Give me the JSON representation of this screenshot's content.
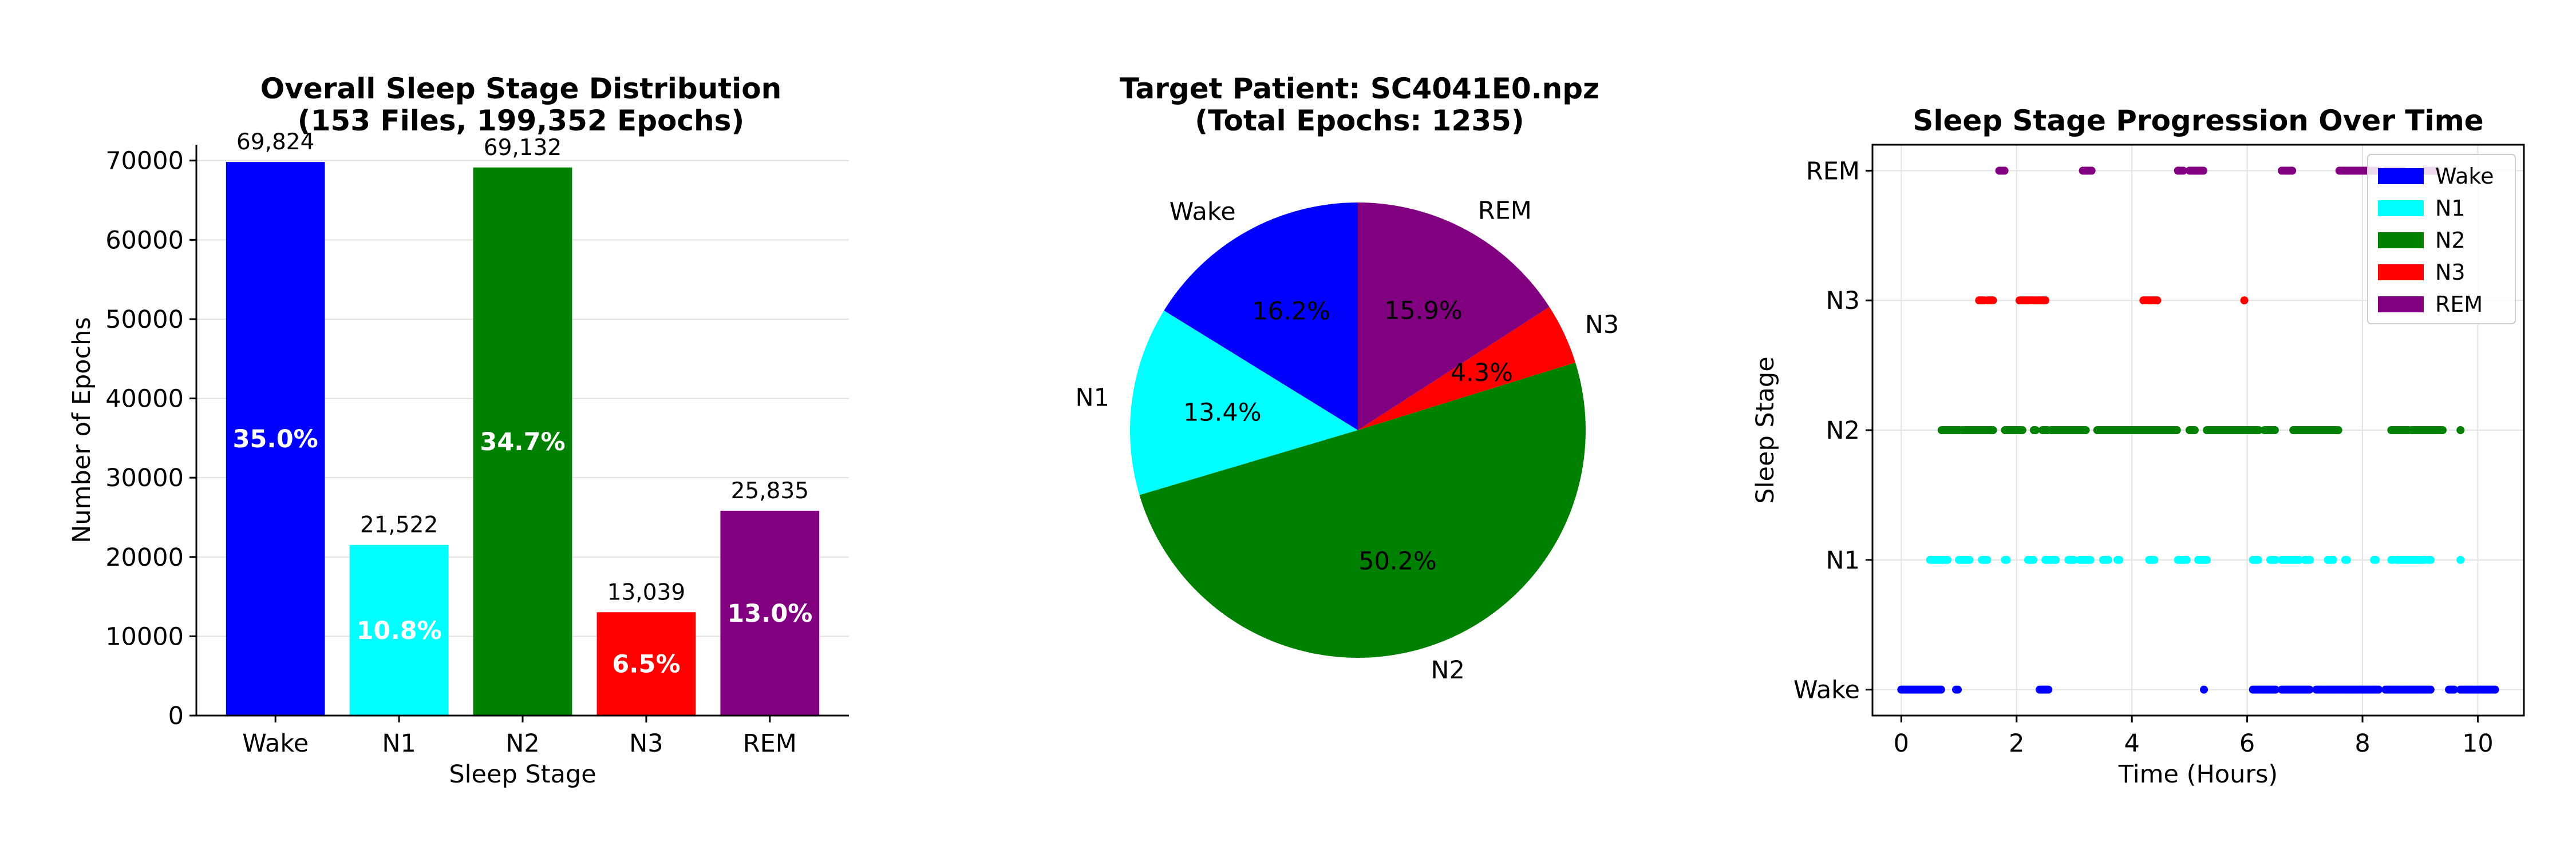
{
  "colors": {
    "Wake": "#0000ff",
    "N1": "#00ffff",
    "N2": "#008000",
    "N3": "#ff0000",
    "REM": "#800080"
  },
  "chart_data": [
    {
      "type": "bar",
      "title_line1": "Overall Sleep Stage Distribution",
      "title_line2": "(153 Files, 199,352 Epochs)",
      "xlabel": "Sleep Stage",
      "ylabel": "Number of Epochs",
      "ylim": [
        0,
        72000
      ],
      "yticks": [
        0,
        10000,
        20000,
        30000,
        40000,
        50000,
        60000,
        70000
      ],
      "grid": "horizontal",
      "categories": [
        "Wake",
        "N1",
        "N2",
        "N3",
        "REM"
      ],
      "values": [
        69824,
        21522,
        69132,
        13039,
        25835
      ],
      "value_labels": [
        "69,824",
        "21,522",
        "69,132",
        "13,039",
        "25,835"
      ],
      "percent_labels": [
        "35.0%",
        "10.8%",
        "34.7%",
        "6.5%",
        "13.0%"
      ]
    },
    {
      "type": "pie",
      "title_line1": "Target Patient: SC4041E0.npz",
      "title_line2": "(Total Epochs: 1235)",
      "start_angle_deg": 90,
      "direction": "counterclockwise",
      "labels": [
        "Wake",
        "N1",
        "N2",
        "N3",
        "REM"
      ],
      "values": [
        16.2,
        13.4,
        50.2,
        4.3,
        15.9
      ],
      "percent_labels": [
        "16.2%",
        "13.4%",
        "50.2%",
        "4.3%",
        "15.9%"
      ]
    },
    {
      "type": "scatter",
      "title": "Sleep Stage Progression Over Time",
      "xlabel": "Time (Hours)",
      "ylabel": "Sleep Stage",
      "xlim": [
        -0.5,
        10.8
      ],
      "xticks": [
        0,
        2,
        4,
        6,
        8,
        10
      ],
      "ycategories": [
        "Wake",
        "N1",
        "N2",
        "N3",
        "REM"
      ],
      "grid": true,
      "legend_position": "top-right",
      "legend": [
        "Wake",
        "N1",
        "N2",
        "N3",
        "REM"
      ],
      "series": [
        {
          "name": "Wake",
          "runs": [
            [
              0,
              0.7
            ],
            [
              0.95,
              1.0
            ],
            [
              2.4,
              2.55
            ],
            [
              5.25,
              5.25
            ],
            [
              6.1,
              6.5
            ],
            [
              6.6,
              7.1
            ],
            [
              7.2,
              8.3
            ],
            [
              8.4,
              9.2
            ],
            [
              9.5,
              9.6
            ],
            [
              9.7,
              10.3
            ]
          ]
        },
        {
          "name": "N1",
          "runs": [
            [
              0.5,
              0.8
            ],
            [
              1.0,
              1.2
            ],
            [
              1.4,
              1.5
            ],
            [
              1.8,
              1.85
            ],
            [
              2.2,
              2.3
            ],
            [
              2.5,
              2.7
            ],
            [
              2.9,
              3.0
            ],
            [
              3.1,
              3.3
            ],
            [
              3.5,
              3.6
            ],
            [
              3.75,
              3.8
            ],
            [
              4.3,
              4.4
            ],
            [
              4.8,
              4.95
            ],
            [
              5.15,
              5.3
            ],
            [
              6.1,
              6.2
            ],
            [
              6.4,
              6.5
            ],
            [
              6.6,
              6.9
            ],
            [
              7.0,
              7.1
            ],
            [
              7.4,
              7.5
            ],
            [
              7.7,
              7.75
            ],
            [
              8.2,
              8.25
            ],
            [
              8.5,
              8.55
            ],
            [
              8.6,
              9.1
            ],
            [
              9.15,
              9.2
            ],
            [
              9.7,
              9.7
            ]
          ]
        },
        {
          "name": "N2",
          "runs": [
            [
              0.7,
              1.0
            ],
            [
              1.05,
              1.6
            ],
            [
              1.8,
              2.1
            ],
            [
              2.3,
              2.35
            ],
            [
              2.45,
              2.55
            ],
            [
              2.6,
              3.2
            ],
            [
              3.4,
              4.8
            ],
            [
              5.0,
              5.1
            ],
            [
              5.3,
              6.2
            ],
            [
              6.3,
              6.5
            ],
            [
              6.8,
              7.6
            ],
            [
              8.5,
              8.8
            ],
            [
              8.85,
              9.4
            ],
            [
              9.7,
              9.7
            ]
          ]
        },
        {
          "name": "N3",
          "runs": [
            [
              1.35,
              1.45
            ],
            [
              1.5,
              1.6
            ],
            [
              2.05,
              2.5
            ],
            [
              4.2,
              4.45
            ],
            [
              5.95,
              5.95
            ]
          ]
        },
        {
          "name": "REM",
          "runs": [
            [
              1.7,
              1.8
            ],
            [
              3.15,
              3.3
            ],
            [
              4.8,
              4.9
            ],
            [
              5.0,
              5.25
            ],
            [
              6.6,
              6.8
            ],
            [
              7.6,
              8.3
            ],
            [
              8.4,
              8.7
            ],
            [
              9.1,
              9.3
            ]
          ]
        }
      ]
    }
  ]
}
